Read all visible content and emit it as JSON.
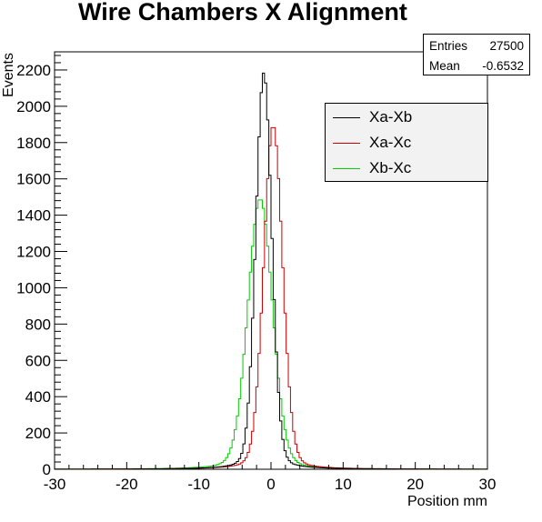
{
  "chart_data": {
    "type": "line",
    "title": "Wire Chambers X Alignment",
    "xlabel": "Position mm",
    "ylabel": "Events",
    "xlim": [
      -30,
      30
    ],
    "ylim": [
      0,
      2300
    ],
    "xticks": [
      -30,
      -20,
      -10,
      0,
      10,
      20,
      30
    ],
    "yticks": [
      0,
      200,
      400,
      600,
      800,
      1000,
      1200,
      1400,
      1600,
      1800,
      2000,
      2200
    ],
    "grid": false,
    "legend_position": "top-right",
    "stats": {
      "entries_label": "Entries",
      "entries_value": "27500",
      "mean_label": "Mean",
      "mean_value": "-0.6532"
    },
    "series": [
      {
        "name": "Xa-Xb",
        "color": "#000000",
        "peak_x": -1.0,
        "peak_y": 2185,
        "sigma": 1.1
      },
      {
        "name": "Xa-Xc",
        "color": "#cc0000",
        "peak_x": 0.3,
        "peak_y": 1895,
        "sigma": 1.3
      },
      {
        "name": "Xb-Xc",
        "color": "#00cc00",
        "peak_x": -1.5,
        "peak_y": 1490,
        "sigma": 1.7
      }
    ]
  }
}
